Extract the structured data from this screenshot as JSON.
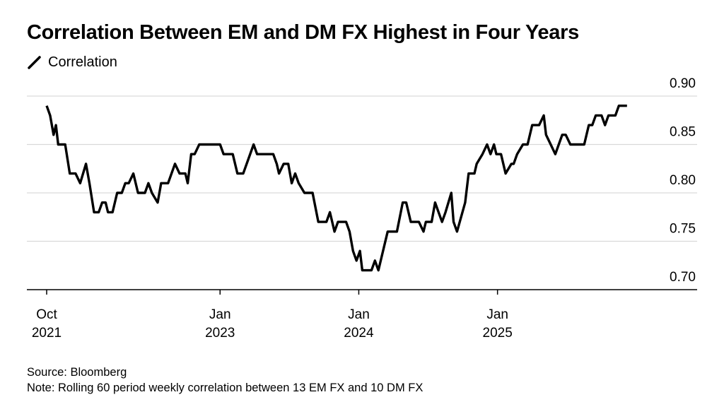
{
  "title": "Correlation Between EM and DM FX Highest in Four Years",
  "legend": {
    "label": "Correlation",
    "icon": "line-swatch-icon"
  },
  "footer": {
    "source": "Source: Bloomberg",
    "note": "Note: Rolling 60 period weekly correlation between 13 EM FX and 10 DM FX"
  },
  "colors": {
    "line": "#000000",
    "grid": "#d9d9d9",
    "axis": "#000000"
  },
  "chart_data": {
    "type": "line",
    "title": "Correlation Between EM and DM FX Highest in Four Years",
    "xlabel": "",
    "ylabel": "",
    "ylim": [
      0.7,
      0.9
    ],
    "y_ticks": [
      0.7,
      0.75,
      0.8,
      0.85,
      0.9
    ],
    "y_tick_labels": [
      "0.70",
      "0.75",
      "0.80",
      "0.85",
      "0.90"
    ],
    "x_ticks": [
      {
        "month": "Oct",
        "year": "2021",
        "t": 0
      },
      {
        "month": "Jan",
        "year": "2023",
        "t": 15
      },
      {
        "month": "Jan",
        "year": "2024",
        "t": 27
      },
      {
        "month": "Jan",
        "year": "2025",
        "t": 39
      }
    ],
    "grid": true,
    "series": [
      {
        "name": "Correlation",
        "points": [
          [
            0.0,
            0.89
          ],
          [
            0.3,
            0.88
          ],
          [
            0.6,
            0.86
          ],
          [
            0.8,
            0.87
          ],
          [
            1.0,
            0.85
          ],
          [
            1.6,
            0.85
          ],
          [
            2.0,
            0.82
          ],
          [
            2.5,
            0.82
          ],
          [
            2.9,
            0.81
          ],
          [
            3.4,
            0.83
          ],
          [
            3.7,
            0.81
          ],
          [
            4.1,
            0.78
          ],
          [
            4.5,
            0.78
          ],
          [
            4.8,
            0.79
          ],
          [
            5.1,
            0.79
          ],
          [
            5.3,
            0.78
          ],
          [
            5.7,
            0.78
          ],
          [
            6.1,
            0.8
          ],
          [
            6.5,
            0.8
          ],
          [
            6.8,
            0.81
          ],
          [
            7.1,
            0.81
          ],
          [
            7.5,
            0.82
          ],
          [
            7.9,
            0.8
          ],
          [
            8.5,
            0.8
          ],
          [
            8.8,
            0.81
          ],
          [
            9.1,
            0.8
          ],
          [
            9.6,
            0.79
          ],
          [
            9.9,
            0.81
          ],
          [
            10.5,
            0.81
          ],
          [
            11.1,
            0.83
          ],
          [
            11.5,
            0.82
          ],
          [
            12.0,
            0.82
          ],
          [
            12.2,
            0.81
          ],
          [
            12.5,
            0.84
          ],
          [
            12.8,
            0.84
          ],
          [
            13.2,
            0.85
          ],
          [
            14.2,
            0.85
          ],
          [
            15.0,
            0.85
          ],
          [
            15.3,
            0.84
          ],
          [
            16.1,
            0.84
          ],
          [
            16.5,
            0.82
          ],
          [
            17.0,
            0.82
          ],
          [
            17.9,
            0.85
          ],
          [
            18.2,
            0.84
          ],
          [
            19.6,
            0.84
          ],
          [
            19.9,
            0.83
          ],
          [
            20.1,
            0.82
          ],
          [
            20.5,
            0.83
          ],
          [
            20.9,
            0.83
          ],
          [
            21.2,
            0.81
          ],
          [
            21.5,
            0.82
          ],
          [
            21.8,
            0.81
          ],
          [
            22.3,
            0.8
          ],
          [
            23.0,
            0.8
          ],
          [
            23.5,
            0.77
          ],
          [
            24.2,
            0.77
          ],
          [
            24.5,
            0.78
          ],
          [
            24.9,
            0.76
          ],
          [
            25.2,
            0.77
          ],
          [
            25.9,
            0.77
          ],
          [
            26.2,
            0.76
          ],
          [
            26.5,
            0.74
          ],
          [
            26.8,
            0.73
          ],
          [
            27.1,
            0.74
          ],
          [
            27.3,
            0.72
          ],
          [
            28.1,
            0.72
          ],
          [
            28.4,
            0.73
          ],
          [
            28.7,
            0.72
          ],
          [
            29.5,
            0.76
          ],
          [
            30.3,
            0.76
          ],
          [
            30.8,
            0.79
          ],
          [
            31.1,
            0.79
          ],
          [
            31.5,
            0.77
          ],
          [
            32.2,
            0.77
          ],
          [
            32.6,
            0.76
          ],
          [
            32.8,
            0.77
          ],
          [
            33.3,
            0.77
          ],
          [
            33.6,
            0.79
          ],
          [
            33.9,
            0.78
          ],
          [
            34.2,
            0.77
          ],
          [
            34.5,
            0.78
          ],
          [
            35.0,
            0.8
          ],
          [
            35.2,
            0.77
          ],
          [
            35.5,
            0.76
          ],
          [
            36.2,
            0.79
          ],
          [
            36.5,
            0.82
          ],
          [
            37.0,
            0.82
          ],
          [
            37.2,
            0.83
          ],
          [
            37.7,
            0.84
          ],
          [
            38.1,
            0.85
          ],
          [
            38.4,
            0.84
          ],
          [
            38.7,
            0.85
          ],
          [
            38.9,
            0.84
          ],
          [
            39.3,
            0.84
          ],
          [
            39.7,
            0.82
          ],
          [
            40.2,
            0.83
          ],
          [
            40.4,
            0.83
          ],
          [
            40.7,
            0.84
          ],
          [
            41.2,
            0.85
          ],
          [
            41.6,
            0.85
          ],
          [
            42.0,
            0.87
          ],
          [
            42.6,
            0.87
          ],
          [
            43.0,
            0.88
          ],
          [
            43.2,
            0.86
          ],
          [
            43.6,
            0.85
          ],
          [
            44.0,
            0.84
          ],
          [
            44.3,
            0.85
          ],
          [
            44.6,
            0.86
          ],
          [
            44.9,
            0.86
          ],
          [
            45.3,
            0.85
          ],
          [
            46.5,
            0.85
          ],
          [
            46.9,
            0.87
          ],
          [
            47.2,
            0.87
          ],
          [
            47.5,
            0.88
          ],
          [
            48.0,
            0.88
          ],
          [
            48.3,
            0.87
          ],
          [
            48.6,
            0.88
          ],
          [
            49.2,
            0.88
          ],
          [
            49.5,
            0.89
          ],
          [
            50.2,
            0.89
          ]
        ]
      }
    ]
  }
}
